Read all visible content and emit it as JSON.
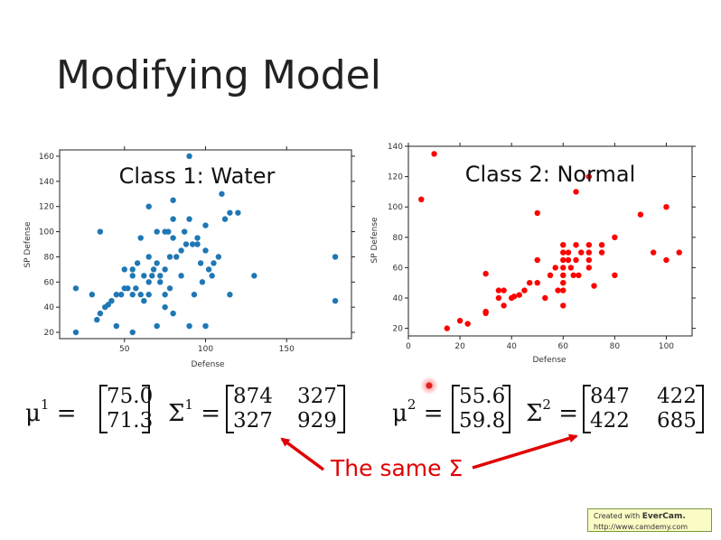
{
  "slide": {
    "title": "Modifying Model",
    "annotation": "The same Σ",
    "colors": {
      "class1": "#1f77b4",
      "class2": "#ff0000",
      "annotation": "#e00000"
    }
  },
  "math": {
    "mu1_sym": "μ",
    "mu1_sup": "1",
    "mu1_vals": [
      "75.0",
      "71.3"
    ],
    "sigma1_sym": "Σ",
    "sigma1_sup": "1",
    "sigma1_vals": [
      "874",
      "327",
      "327",
      "929"
    ],
    "mu2_sym": "μ",
    "mu2_sup": "2",
    "mu2_vals": [
      "55.6",
      "59.8"
    ],
    "sigma2_sym": "Σ",
    "sigma2_sup": "2",
    "sigma2_vals": [
      "847",
      "422",
      "422",
      "685"
    ],
    "eq": "="
  },
  "badge": {
    "line1_prefix": "Created with ",
    "line1_brand": "EverCam.",
    "line2": "http://www.camdemy.com"
  },
  "chart_data": [
    {
      "type": "scatter",
      "title": "Class 1: Water",
      "xlabel": "Defense",
      "ylabel": "SP Defense",
      "xlim": [
        10,
        190
      ],
      "ylim": [
        15,
        165
      ],
      "xticks": [
        50,
        100,
        150
      ],
      "yticks": [
        20,
        40,
        60,
        80,
        100,
        120,
        140,
        160
      ],
      "color": "#1f77b4",
      "grid": false,
      "points": [
        [
          20,
          20
        ],
        [
          20,
          55
        ],
        [
          30,
          50
        ],
        [
          33,
          30
        ],
        [
          35,
          35
        ],
        [
          38,
          40
        ],
        [
          35,
          100
        ],
        [
          40,
          42
        ],
        [
          42,
          45
        ],
        [
          45,
          25
        ],
        [
          45,
          50
        ],
        [
          48,
          50
        ],
        [
          50,
          55
        ],
        [
          50,
          70
        ],
        [
          52,
          55
        ],
        [
          55,
          20
        ],
        [
          55,
          50
        ],
        [
          55,
          65
        ],
        [
          55,
          70
        ],
        [
          57,
          55
        ],
        [
          58,
          75
        ],
        [
          60,
          95
        ],
        [
          60,
          50
        ],
        [
          62,
          45
        ],
        [
          62,
          65
        ],
        [
          65,
          80
        ],
        [
          65,
          120
        ],
        [
          65,
          50
        ],
        [
          65,
          60
        ],
        [
          67,
          65
        ],
        [
          68,
          70
        ],
        [
          70,
          25
        ],
        [
          70,
          100
        ],
        [
          70,
          75
        ],
        [
          72,
          65
        ],
        [
          72,
          60
        ],
        [
          75,
          100
        ],
        [
          75,
          70
        ],
        [
          75,
          50
        ],
        [
          75,
          40
        ],
        [
          77,
          100
        ],
        [
          78,
          80
        ],
        [
          78,
          55
        ],
        [
          80,
          125
        ],
        [
          80,
          110
        ],
        [
          80,
          95
        ],
        [
          80,
          35
        ],
        [
          82,
          80
        ],
        [
          85,
          85
        ],
        [
          85,
          65
        ],
        [
          87,
          100
        ],
        [
          88,
          90
        ],
        [
          90,
          160
        ],
        [
          90,
          25
        ],
        [
          90,
          110
        ],
        [
          92,
          90
        ],
        [
          93,
          50
        ],
        [
          95,
          95
        ],
        [
          95,
          90
        ],
        [
          97,
          75
        ],
        [
          98,
          60
        ],
        [
          100,
          105
        ],
        [
          100,
          85
        ],
        [
          100,
          25
        ],
        [
          102,
          70
        ],
        [
          104,
          65
        ],
        [
          105,
          75
        ],
        [
          108,
          80
        ],
        [
          110,
          130
        ],
        [
          112,
          110
        ],
        [
          115,
          115
        ],
        [
          115,
          50
        ],
        [
          120,
          115
        ],
        [
          130,
          65
        ],
        [
          180,
          80
        ],
        [
          180,
          45
        ]
      ]
    },
    {
      "type": "scatter",
      "title": "Class 2: Normal",
      "xlabel": "Defense",
      "ylabel": "SP Defense",
      "xlim": [
        0,
        110
      ],
      "ylim": [
        15,
        140
      ],
      "xticks": [
        0,
        20,
        40,
        60,
        80,
        100
      ],
      "yticks": [
        20,
        40,
        60,
        80,
        100,
        120,
        140
      ],
      "color": "#ff0000",
      "grid": false,
      "points": [
        [
          5,
          105
        ],
        [
          10,
          135
        ],
        [
          15,
          20
        ],
        [
          20,
          25
        ],
        [
          23,
          23
        ],
        [
          30,
          30
        ],
        [
          30,
          31
        ],
        [
          30,
          56
        ],
        [
          35,
          45
        ],
        [
          35,
          40
        ],
        [
          37,
          35
        ],
        [
          37,
          45
        ],
        [
          40,
          40
        ],
        [
          41,
          41
        ],
        [
          43,
          42
        ],
        [
          45,
          45
        ],
        [
          47,
          50
        ],
        [
          50,
          96
        ],
        [
          50,
          65
        ],
        [
          50,
          50
        ],
        [
          53,
          40
        ],
        [
          55,
          55
        ],
        [
          57,
          60
        ],
        [
          58,
          45
        ],
        [
          60,
          75
        ],
        [
          60,
          70
        ],
        [
          60,
          65
        ],
        [
          60,
          60
        ],
        [
          60,
          55
        ],
        [
          60,
          50
        ],
        [
          60,
          45
        ],
        [
          60,
          35
        ],
        [
          62,
          65
        ],
        [
          62,
          70
        ],
        [
          63,
          60
        ],
        [
          64,
          55
        ],
        [
          65,
          110
        ],
        [
          65,
          75
        ],
        [
          65,
          65
        ],
        [
          66,
          55
        ],
        [
          67,
          70
        ],
        [
          70,
          75
        ],
        [
          70,
          70
        ],
        [
          70,
          65
        ],
        [
          70,
          60
        ],
        [
          70,
          120
        ],
        [
          72,
          48
        ],
        [
          75,
          75
        ],
        [
          75,
          70
        ],
        [
          80,
          80
        ],
        [
          80,
          55
        ],
        [
          90,
          95
        ],
        [
          95,
          70
        ],
        [
          100,
          100
        ],
        [
          100,
          65
        ],
        [
          105,
          70
        ]
      ]
    }
  ]
}
